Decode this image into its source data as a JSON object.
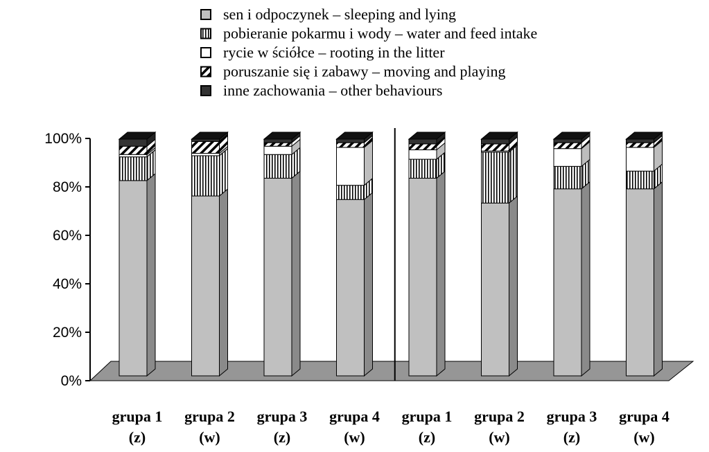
{
  "chart_data": {
    "type": "bar",
    "stacked": true,
    "three_d": true,
    "ylim": [
      0,
      100
    ],
    "y_ticks": [
      "0%",
      "20%",
      "40%",
      "60%",
      "80%",
      "100%"
    ],
    "categories": [
      {
        "name": "grupa 1",
        "sub": "(z)"
      },
      {
        "name": "grupa 2",
        "sub": "(w)"
      },
      {
        "name": "grupa 3",
        "sub": "(z)"
      },
      {
        "name": "grupa 4",
        "sub": "(w)"
      },
      {
        "name": "grupa 1",
        "sub": "(z)"
      },
      {
        "name": "grupa 2",
        "sub": "(w)"
      },
      {
        "name": "grupa 3",
        "sub": "(z)"
      },
      {
        "name": "grupa 4",
        "sub": "(w)"
      }
    ],
    "series": [
      {
        "name": "sen i odpoczynek – sleeping and lying",
        "pattern": "solid-light",
        "values": [
          82.5,
          76,
          83.5,
          74.5,
          83.5,
          73,
          79,
          79
        ]
      },
      {
        "name": "pobieranie pokarmu i wody – water and feed intake",
        "pattern": "vertical-lines",
        "values": [
          10,
          17,
          10,
          6,
          8,
          21.5,
          9.5,
          7.5
        ]
      },
      {
        "name": "rycie w ściółce – rooting in the litter",
        "pattern": "white",
        "values": [
          1,
          1,
          3.5,
          16,
          4,
          0.5,
          7.5,
          10
        ]
      },
      {
        "name": "poruszanie się i zabawy – moving and playing",
        "pattern": "diagonal",
        "values": [
          3.5,
          5,
          1.5,
          2,
          2.5,
          3,
          2.5,
          2
        ]
      },
      {
        "name": "inne zachowania – other behaviours",
        "pattern": "solid-dark",
        "values": [
          3,
          1,
          1.5,
          1.5,
          2,
          2,
          1.5,
          1.5
        ]
      }
    ],
    "colors": {
      "solid-light": "#c0c0c0",
      "vertical-lines": "#ffffff",
      "white": "#ffffff",
      "diagonal": "#ffffff",
      "solid-dark": "#333333",
      "floor": "#969696",
      "side": "#8c8c8c"
    },
    "legend_position": "top",
    "divider_after_category": 4,
    "grid": false
  }
}
